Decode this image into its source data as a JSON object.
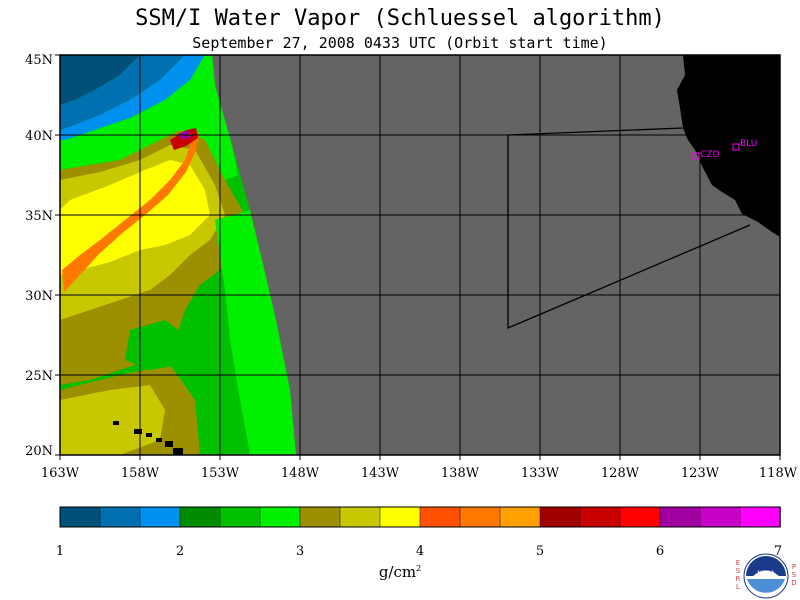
{
  "title": "SSM/I Water Vapor (Schluessel algorithm)",
  "subtitle": "September 27, 2008   0433 UTC  (Orbit start time)",
  "chart_data": {
    "type": "heatmap",
    "variable": "SSM/I Water Vapor",
    "units": "g/cm²",
    "units_base": "g/cm",
    "units_exp": "2",
    "x_range": [
      -163,
      -118
    ],
    "y_range": [
      20,
      45
    ],
    "x_ticks": [
      "163W",
      "158W",
      "153W",
      "148W",
      "143W",
      "138W",
      "133W",
      "128W",
      "123W",
      "118W"
    ],
    "y_ticks": [
      "45N",
      "40N",
      "35N",
      "30N",
      "25N",
      "20N"
    ],
    "colorbar": {
      "min": 1,
      "max": 7,
      "tick_labels": [
        "1",
        "2",
        "3",
        "4",
        "5",
        "6",
        "7"
      ],
      "colors": [
        "#00507a",
        "#0070b0",
        "#0090f0",
        "#008c00",
        "#00c000",
        "#00f000",
        "#9c9000",
        "#c8c800",
        "#ffff00",
        "#ff5000",
        "#ff7800",
        "#ffa000",
        "#a00000",
        "#c80000",
        "#ff0000",
        "#a000a0",
        "#c800c8",
        "#ff00ff"
      ]
    },
    "stations": [
      {
        "name": "CZD",
        "lon": -123.5,
        "lat": 38.6
      },
      {
        "name": "BLU",
        "lon": -121.0,
        "lat": 39.3
      }
    ],
    "land_color": "#000000",
    "no_data_color": "#646464"
  },
  "logo": {
    "left_letters": [
      "E",
      "S",
      "R",
      "L"
    ],
    "right_letters": [
      "P",
      "S",
      "D"
    ],
    "center_text": "NOAA"
  }
}
